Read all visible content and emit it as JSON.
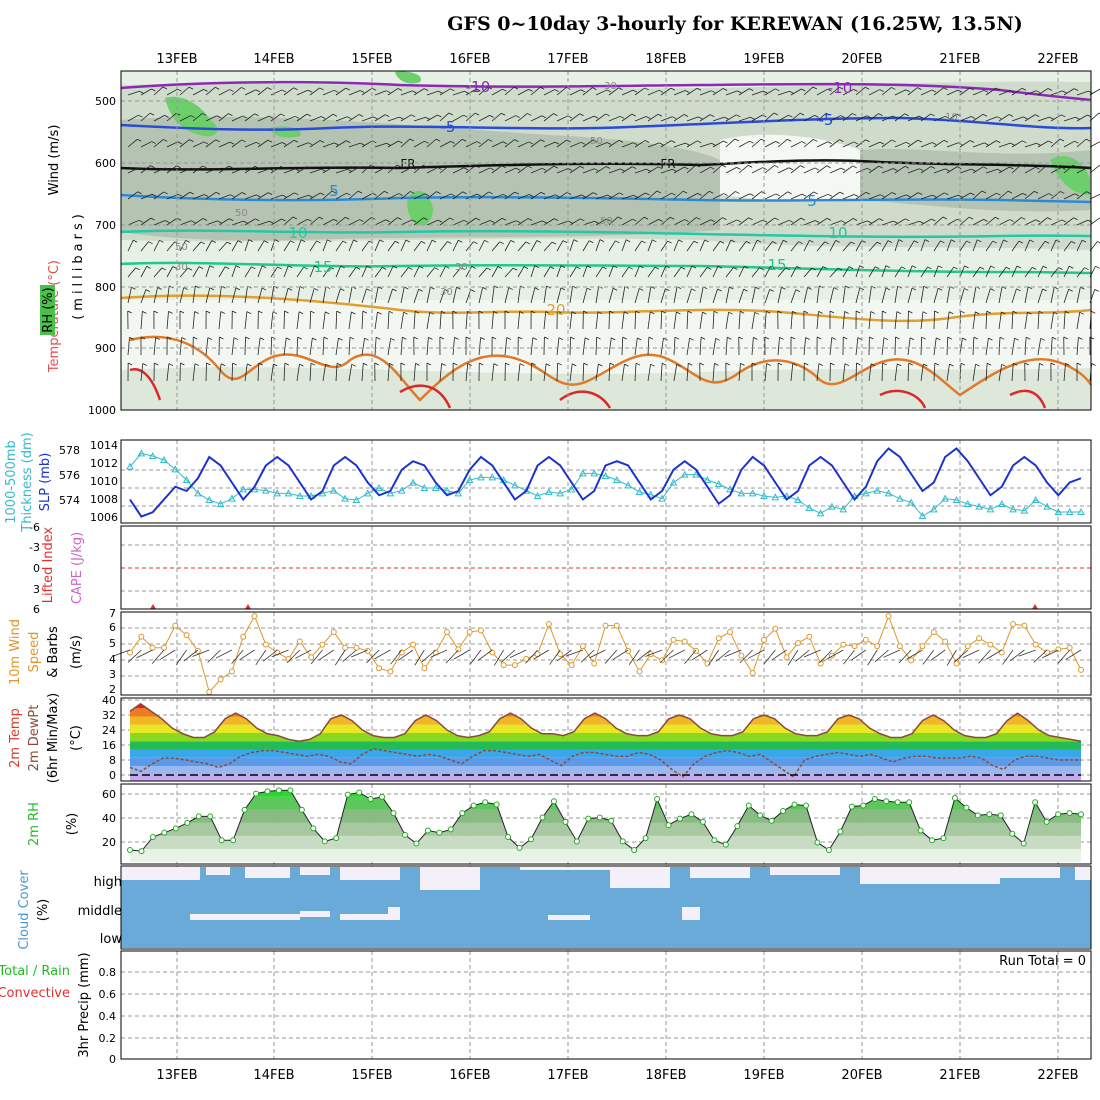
{
  "title": "GFS 0~10day 3-hourly for KEREWAN (16.25W, 13.5N)",
  "dates": [
    "13FEB",
    "14FEB",
    "15FEB",
    "16FEB",
    "17FEB",
    "18FEB",
    "19FEB",
    "20FEB",
    "21FEB",
    "22FEB"
  ],
  "run_total_label": "Run Total = 0",
  "colors": {
    "slp": "#1a33cc",
    "thickness": "#33bbcc",
    "wind_speed": "#e0962a",
    "temp_fill_hot": "#e02020",
    "dewpoint": "#8a4a3a",
    "rh": "#22bb22",
    "cloud": "#6aaad8",
    "cloud_clear": "#f4f0fa",
    "cape": "#cc66cc",
    "lifted": "#e03030"
  },
  "panels": {
    "upper": {
      "ylabels": [
        "Wind (m/s)",
        "Temperature (°C)",
        "RH (%)",
        "(millibars)"
      ],
      "yticks": [
        "500",
        "600",
        "700",
        "800",
        "900",
        "1000"
      ],
      "contour_labels": [
        "-10",
        "-10",
        "-5",
        "-5",
        "FR",
        "FR",
        "5",
        "5",
        "10",
        "10",
        "15",
        "15",
        "20"
      ],
      "rh_labels": [
        "30",
        "30",
        "50",
        "50",
        "50",
        "30",
        "30",
        "10",
        "50"
      ]
    },
    "slp": {
      "ylabels": [
        "1000-500mb",
        "Thickness (dm)",
        "SLP (mb)"
      ],
      "yticks_left": [
        "578",
        "576",
        "574"
      ],
      "yticks_right": [
        "1014",
        "1012",
        "1010",
        "1008",
        "1006"
      ]
    },
    "cape": {
      "ylabels": [
        "Lifted Index",
        "CAPE (J/kg)"
      ],
      "yticks": [
        "-6",
        "-3",
        "0",
        "3",
        "6"
      ]
    },
    "wind": {
      "ylabels": [
        "10m Wind",
        "Speed",
        "& Barbs",
        "(m/s)"
      ],
      "yticks": [
        "7",
        "6",
        "5",
        "4",
        "3",
        "2"
      ]
    },
    "temp": {
      "ylabels": [
        "2m Temp",
        "2m DewPt",
        "(6hr Min/Max)",
        "(°C)"
      ],
      "yticks": [
        "40",
        "32",
        "24",
        "16",
        "8",
        "0"
      ]
    },
    "rh2m": {
      "ylabels": [
        "2m RH",
        "(%)"
      ],
      "yticks": [
        "60",
        "40",
        "20"
      ]
    },
    "cloud": {
      "ylabels": [
        "Cloud Cover",
        "(%)"
      ],
      "levels": [
        "high",
        "middle",
        "low"
      ]
    },
    "precip": {
      "ylabels": [
        "Total / Rain",
        "Convective",
        "3hr Precip (mm)"
      ],
      "yticks": [
        "0.8",
        "0.6",
        "0.4",
        "0.2",
        "0"
      ]
    }
  },
  "chart_data": [
    {
      "type": "line",
      "title": "SLP (mb)",
      "series": [
        {
          "name": "SLP (mb)",
          "values": [
            1008,
            1006,
            1006.5,
            1008,
            1009.5,
            1009,
            1010.5,
            1013,
            1012,
            1010,
            1008,
            1009.5,
            1012,
            1013,
            1012,
            1010,
            1008,
            1009,
            1012,
            1013,
            1012,
            1010,
            1008.5,
            1009,
            1011.5,
            1012.5,
            1012,
            1010,
            1008.5,
            1009,
            1011.5,
            1013,
            1012,
            1010,
            1008,
            1009,
            1012,
            1013,
            1012,
            1010,
            1008,
            1009,
            1012,
            1012.5,
            1012,
            1010,
            1008,
            1009,
            1011.5,
            1012.5,
            1011.5,
            1009.5,
            1007.5,
            1008.5,
            1011.5,
            1013,
            1012,
            1010,
            1008,
            1009,
            1012,
            1013,
            1012,
            1010,
            1008,
            1009.5,
            1012.5,
            1014,
            1013,
            1011,
            1009,
            1010,
            1013,
            1014,
            1012.5,
            1010.5,
            1008.5,
            1009.5,
            1012,
            1013,
            1012,
            1010,
            1008.5,
            1010,
            1010.5
          ]
        }
      ]
    },
    {
      "type": "line",
      "title": "1000-500mb Thickness (dm)",
      "series": [
        {
          "name": "Thickness (dm)",
          "values": [
            577,
            578,
            577.8,
            577.5,
            576.8,
            576,
            575,
            574.5,
            574.2,
            574.6,
            575.3,
            575.3,
            575.2,
            575,
            575,
            574.8,
            574.8,
            575,
            575.2,
            574.6,
            574.5,
            575,
            575.4,
            575,
            575.2,
            575.8,
            575.4,
            575.4,
            575.2,
            575,
            576,
            576.2,
            576.2,
            576,
            575.6,
            575.2,
            574.8,
            575.1,
            575,
            575.3,
            576.5,
            576.5,
            576.3,
            576,
            575.6,
            575.1,
            574.9,
            574.6,
            575.8,
            576.4,
            576.4,
            576,
            575.7,
            575.3,
            575,
            575,
            574.8,
            574.7,
            574.8,
            574.5,
            573.9,
            573.5,
            574,
            573.8,
            574.8,
            575,
            575.2,
            575,
            574.6,
            574.3,
            573.3,
            573.8,
            574.6,
            574.5,
            574.2,
            574,
            573.8,
            574.2,
            573.8,
            573.7,
            574.5,
            574,
            573.6,
            573.6,
            573.6
          ]
        }
      ]
    },
    {
      "type": "line",
      "title": "10m Wind Speed (m/s)",
      "series": [
        {
          "name": "10m Wind Speed",
          "values": [
            4.5,
            5.5,
            4.8,
            4.8,
            6.2,
            5.6,
            4.6,
            2,
            2.8,
            3.3,
            5.5,
            6.8,
            5,
            4.5,
            4.1,
            5.2,
            4.2,
            5,
            5.8,
            4.8,
            4.8,
            4.6,
            3.5,
            3.3,
            4.5,
            5,
            3.5,
            4.5,
            5.8,
            4.7,
            5.8,
            5.9,
            4.5,
            3.7,
            3.7,
            4.1,
            4.4,
            6.3,
            4.4,
            3.7,
            4.9,
            3.8,
            6.2,
            6.2,
            4.6,
            3.3,
            4.4,
            4,
            5.3,
            5.2,
            4.6,
            3.8,
            5.4,
            5.8,
            4.3,
            3.2,
            5.3,
            6,
            4.2,
            5.1,
            5.5,
            3.8,
            4.3,
            5,
            4.9,
            5.3,
            4.9,
            6.8,
            4.9,
            4,
            4.9,
            5.8,
            5.2,
            3.8,
            4.9,
            5.4,
            5,
            4.5,
            6.3,
            6.2,
            5,
            4.5,
            4.7,
            4.8,
            3.4
          ]
        }
      ]
    },
    {
      "type": "area",
      "title": "2m Temp / 2m DewPt (°C)",
      "series": [
        {
          "name": "2m Temp",
          "values": [
            34,
            38,
            34,
            30,
            25,
            22,
            20,
            20,
            23,
            30,
            33,
            30,
            25,
            22,
            21,
            19,
            18,
            19,
            22,
            30,
            32,
            29,
            24,
            21,
            20,
            20,
            22,
            29,
            32,
            29,
            24,
            21,
            20,
            21,
            23,
            30,
            33,
            30,
            25,
            22,
            22,
            21,
            23,
            30,
            33,
            30,
            25,
            22,
            21,
            21,
            23,
            30,
            32,
            30,
            25,
            22,
            21,
            21,
            23,
            30,
            32,
            30,
            25,
            22,
            21,
            21,
            23,
            30,
            32,
            30,
            25,
            22,
            20,
            20,
            22,
            29,
            32,
            29,
            24,
            21,
            20,
            20,
            22,
            29,
            33,
            29,
            24,
            21,
            20,
            19,
            18
          ]
        },
        {
          "name": "2m DewPt",
          "values": [
            4,
            2,
            6,
            9,
            9,
            8,
            7,
            6,
            4,
            6,
            10,
            12,
            13,
            13,
            12,
            11,
            10,
            11,
            10,
            7,
            6,
            11,
            14,
            13,
            12,
            11,
            10,
            11,
            10,
            8,
            6,
            10,
            13,
            13,
            12,
            11,
            10,
            11,
            8,
            5,
            10,
            12,
            12,
            11,
            10,
            10,
            12,
            11,
            8,
            3,
            -1,
            6,
            10,
            12,
            13,
            12,
            10,
            11,
            7,
            3,
            -1,
            8,
            10,
            11,
            12,
            11,
            10,
            11,
            9,
            7,
            9,
            10,
            10,
            9,
            9,
            9,
            10,
            9,
            5,
            3,
            8,
            10,
            10,
            9,
            8,
            8,
            8
          ]
        }
      ]
    },
    {
      "type": "area",
      "title": "2m RH (%)",
      "series": [
        {
          "name": "2m RH",
          "values": [
            11,
            10,
            23,
            27,
            31,
            36,
            42,
            42,
            20,
            20,
            48,
            63,
            65,
            66,
            66,
            48,
            31,
            19,
            22,
            62,
            64,
            58,
            60,
            45,
            25,
            17,
            29,
            27,
            30,
            45,
            52,
            55,
            53,
            23,
            13,
            21,
            41,
            56,
            37,
            19,
            40,
            41,
            38,
            19,
            11,
            22,
            58,
            34,
            40,
            44,
            37,
            20,
            16,
            33,
            52,
            43,
            38,
            47,
            53,
            52,
            18,
            11,
            28,
            51,
            52,
            58,
            56,
            55,
            55,
            29,
            20,
            22,
            59,
            50,
            43,
            44,
            43,
            26,
            17,
            55,
            37,
            44,
            45,
            44
          ]
        }
      ]
    }
  ]
}
